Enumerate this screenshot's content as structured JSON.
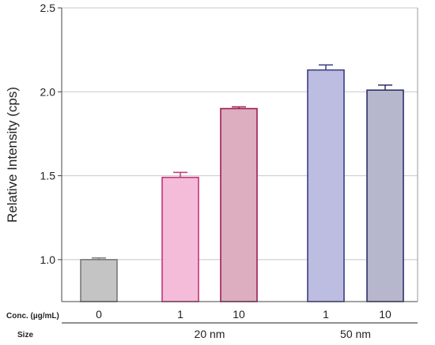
{
  "chart_data": {
    "type": "bar",
    "ylabel": "Relative Intensity (cps)",
    "ylim": [
      0.75,
      2.5
    ],
    "yticks": [
      1.0,
      1.5,
      2.0,
      2.5
    ],
    "ytick_labels": [
      "1.0",
      "1.5",
      "2.0",
      "2.5"
    ],
    "grid": "horizontal",
    "row_labels": {
      "conc": "Conc. (µg/mL)",
      "size": "Size"
    },
    "groups": [
      {
        "label": "",
        "bar_indices": [
          0
        ]
      },
      {
        "label": "20 nm",
        "bar_indices": [
          1,
          2
        ]
      },
      {
        "label": "50 nm",
        "bar_indices": [
          3,
          4
        ]
      }
    ],
    "bars": [
      {
        "conc": "0",
        "value": 1.0,
        "error": 0.01,
        "fill": "#c4c4c4",
        "stroke": "#7a7a7a"
      },
      {
        "conc": "1",
        "value": 1.49,
        "error": 0.03,
        "fill": "#f4bcd9",
        "stroke": "#c2367a"
      },
      {
        "conc": "10",
        "value": 1.9,
        "error": 0.01,
        "fill": "#dcaec0",
        "stroke": "#9c1d55"
      },
      {
        "conc": "1",
        "value": 2.13,
        "error": 0.03,
        "fill": "#bcbde0",
        "stroke": "#3b3d86"
      },
      {
        "conc": "10",
        "value": 2.01,
        "error": 0.03,
        "fill": "#b6b7cc",
        "stroke": "#2d2f6a"
      }
    ]
  }
}
